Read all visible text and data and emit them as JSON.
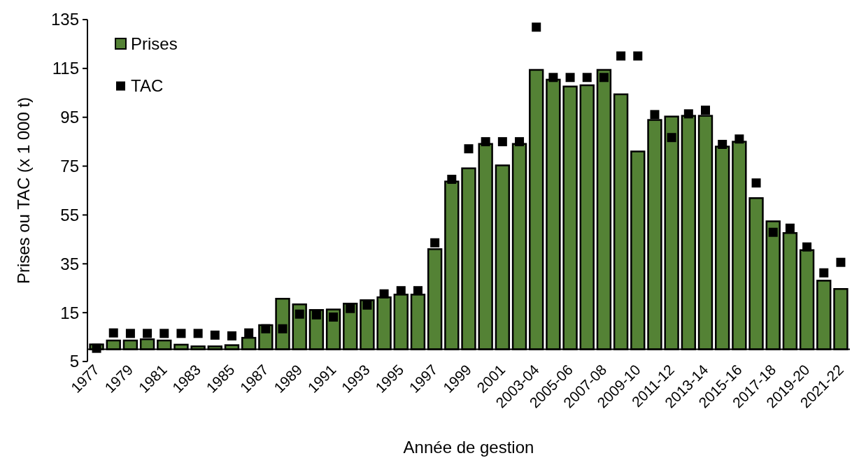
{
  "chart_data": {
    "type": "bar",
    "xlabel": "Année de gestion",
    "ylabel": "Prises ou TAC (x 1 000 t)",
    "categories": [
      "1977",
      null,
      "1979",
      null,
      "1981",
      null,
      "1983",
      null,
      "1985",
      null,
      "1987",
      null,
      "1989",
      null,
      "1991",
      null,
      "1993",
      null,
      "1995",
      null,
      "1997",
      null,
      "1999",
      null,
      "2001",
      null,
      "2003-04",
      null,
      "2005-06",
      null,
      "2007-08",
      null,
      "2009-10",
      null,
      "2011-12",
      null,
      "2013-14",
      null,
      "2015-16",
      null,
      "2017-18",
      null,
      "2019-20",
      null,
      "2021-22"
    ],
    "series": [
      {
        "name": "Prises",
        "type": "bar",
        "color": "#548235",
        "values": [
          2,
          3.6,
          3.6,
          4.1,
          3.6,
          1.9,
          1.2,
          1.2,
          1.7,
          4.7,
          9.9,
          20.7,
          18.4,
          16.1,
          16.3,
          18.7,
          20.1,
          21.3,
          22.4,
          22.4,
          41,
          68.7,
          74.1,
          84.1,
          75.3,
          84.1,
          114.4,
          110.4,
          107.6,
          108.1,
          114.4,
          104.4,
          81,
          93.9,
          95.3,
          95.6,
          95.6,
          83,
          85,
          61.9,
          52.4,
          47.6,
          40.6,
          28.1,
          24.7
        ]
      },
      {
        "name": "TAC",
        "type": "scatter",
        "color": "#000000",
        "values": [
          0.4,
          6.7,
          6.5,
          6.5,
          6.5,
          6.5,
          6.5,
          5.8,
          5.5,
          6.7,
          8.4,
          8.4,
          14.4,
          14.1,
          13.2,
          16.7,
          18.1,
          22.7,
          24,
          24,
          43.6,
          69.6,
          82.1,
          85,
          85,
          85,
          131.9,
          111.3,
          111.3,
          111.3,
          111.3,
          120.1,
          120.1,
          96.1,
          86.7,
          96.4,
          97.9,
          83.9,
          86.1,
          68.1,
          47.9,
          49.6,
          41.9,
          31.3,
          35.6
        ]
      }
    ],
    "ylim": [
      -5,
      135
    ],
    "yticks": [
      {
        "value": -5,
        "label": "5"
      },
      15,
      35,
      55,
      75,
      95,
      115,
      135
    ],
    "marker": "square",
    "legend": "top left"
  }
}
